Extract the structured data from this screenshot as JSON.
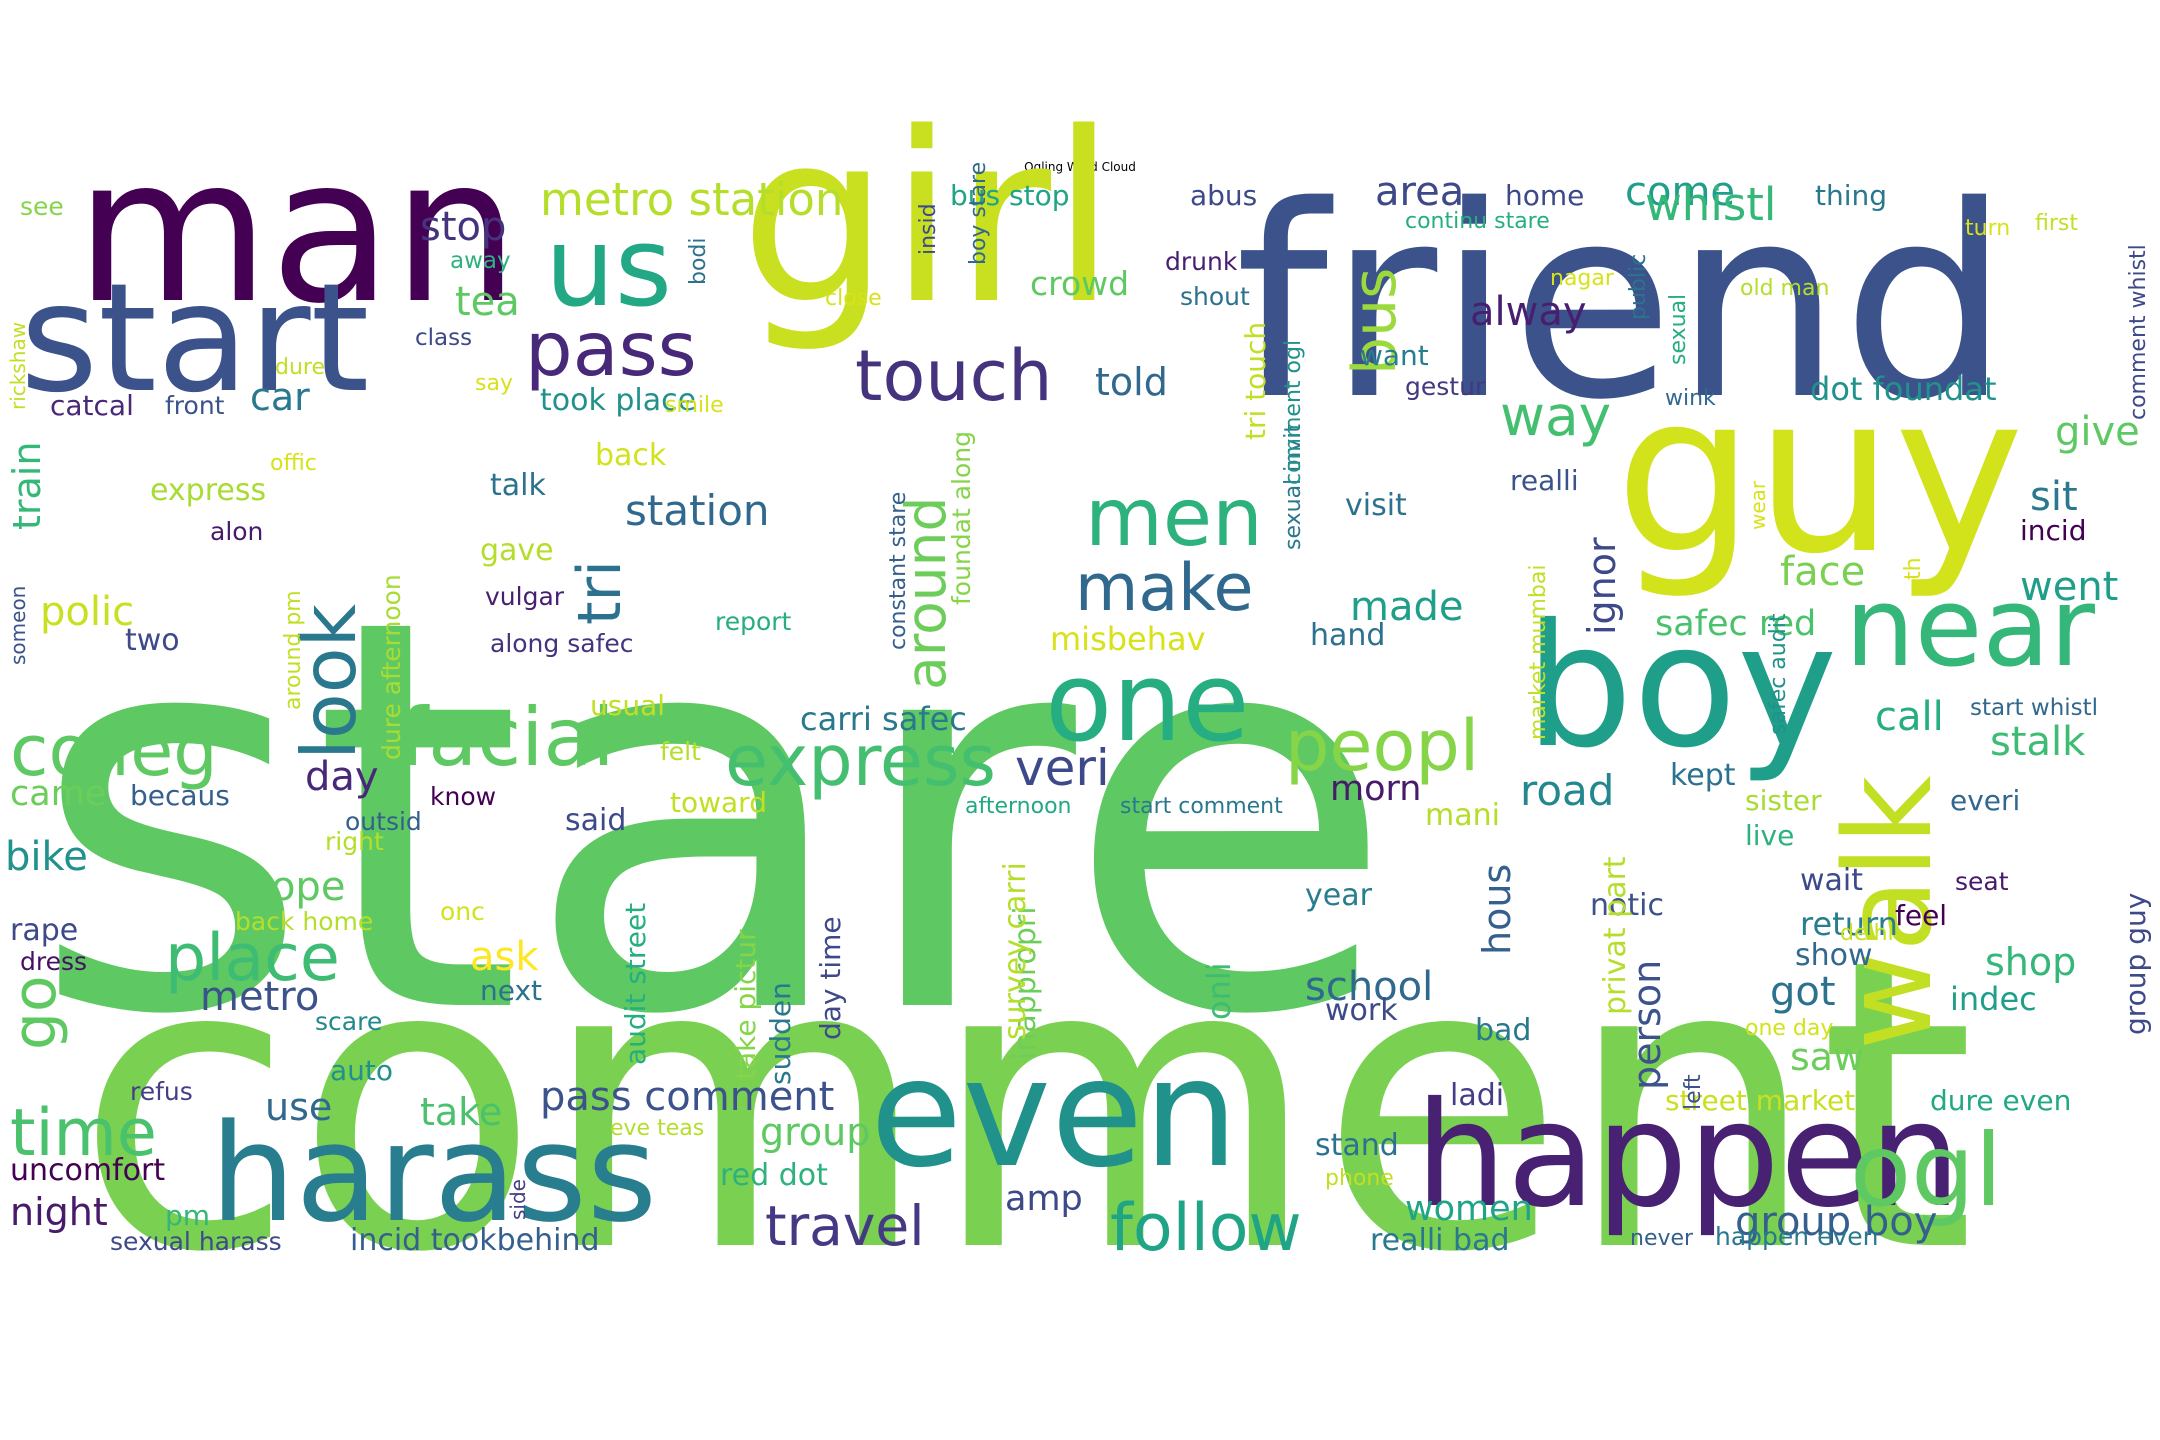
{
  "title": "Ogling Word Cloud",
  "words": [
    {
      "text": "stare",
      "color": "#5ec962"
    },
    {
      "text": "comment",
      "color": "#7ad151"
    },
    {
      "text": "friend",
      "color": "#3b528b"
    },
    {
      "text": "guy",
      "color": "#d2e21b"
    },
    {
      "text": "girl",
      "color": "#c8e020"
    },
    {
      "text": "man",
      "color": "#440154"
    },
    {
      "text": "start",
      "color": "#3b528b"
    },
    {
      "text": "boy",
      "color": "#1f9e89"
    },
    {
      "text": "near",
      "color": "#35b779"
    },
    {
      "text": "even",
      "color": "#21918c"
    },
    {
      "text": "happen",
      "color": "#482173"
    },
    {
      "text": "harass",
      "color": "#287d8e"
    },
    {
      "text": "one",
      "color": "#26ad81"
    },
    {
      "text": "us",
      "color": "#22a884"
    },
    {
      "text": "walk",
      "color": "#c2df23"
    },
    {
      "text": "ogl",
      "color": "#5ec962"
    },
    {
      "text": "look",
      "color": "#2a788e"
    },
    {
      "text": "facial",
      "color": "#5ec962"
    },
    {
      "text": "express",
      "color": "#44bf70"
    },
    {
      "text": "colleg",
      "color": "#5ec962"
    },
    {
      "text": "men",
      "color": "#2db27d"
    },
    {
      "text": "peopl",
      "color": "#86d549"
    },
    {
      "text": "make",
      "color": "#31688e"
    },
    {
      "text": "touch",
      "color": "#46337e"
    },
    {
      "text": "pass",
      "color": "#482878"
    },
    {
      "text": "bus",
      "color": "#9bd93c"
    },
    {
      "text": "around",
      "color": "#6ccd5a"
    },
    {
      "text": "tri",
      "color": "#2c728e"
    },
    {
      "text": "time",
      "color": "#4ac16d"
    },
    {
      "text": "place",
      "color": "#3fbc73"
    },
    {
      "text": "go",
      "color": "#5ec962"
    },
    {
      "text": "follow",
      "color": "#20a486"
    },
    {
      "text": "travel",
      "color": "#443983"
    },
    {
      "text": "veri",
      "color": "#3e4989"
    },
    {
      "text": "way",
      "color": "#44bf70"
    },
    {
      "text": "metro station",
      "color": "#b5de2b"
    },
    {
      "text": "area",
      "color": "#3e4989"
    },
    {
      "text": "come",
      "color": "#1f9e89"
    },
    {
      "text": "whistl",
      "color": "#35b779"
    },
    {
      "text": "stop",
      "color": "#46337e"
    },
    {
      "text": "tea",
      "color": "#5ec962"
    },
    {
      "text": "station",
      "color": "#31688e"
    },
    {
      "text": "alway",
      "color": "#481f70"
    },
    {
      "text": "face",
      "color": "#7ad151"
    },
    {
      "text": "sit",
      "color": "#2a788e"
    },
    {
      "text": "give",
      "color": "#5ec962"
    },
    {
      "text": "went",
      "color": "#1f9e89"
    },
    {
      "text": "stalk",
      "color": "#3fbc73"
    },
    {
      "text": "call",
      "color": "#26ad81"
    },
    {
      "text": "road",
      "color": "#23888e"
    },
    {
      "text": "made",
      "color": "#1f9e89"
    },
    {
      "text": "ignor",
      "color": "#3e4989"
    },
    {
      "text": "safec red",
      "color": "#4ac16d"
    },
    {
      "text": "polic",
      "color": "#c8e020"
    },
    {
      "text": "day",
      "color": "#482878"
    },
    {
      "text": "car",
      "color": "#2a788e"
    },
    {
      "text": "told",
      "color": "#31688e"
    },
    {
      "text": "school",
      "color": "#31688e"
    },
    {
      "text": "metro",
      "color": "#3b528b"
    },
    {
      "text": "ask",
      "color": "#fde725"
    },
    {
      "text": "grope",
      "color": "#5ec962"
    },
    {
      "text": "bike",
      "color": "#21918c"
    },
    {
      "text": "came",
      "color": "#6ccd5a"
    },
    {
      "text": "morn",
      "color": "#481a6c"
    },
    {
      "text": "hous",
      "color": "#355f8d"
    },
    {
      "text": "person",
      "color": "#3b528b"
    },
    {
      "text": "got",
      "color": "#2c728e"
    },
    {
      "text": "shop",
      "color": "#35b779"
    },
    {
      "text": "indec",
      "color": "#1f9e89"
    },
    {
      "text": "saw",
      "color": "#6ccd5a"
    },
    {
      "text": "use",
      "color": "#31688e"
    },
    {
      "text": "take",
      "color": "#4ac16d"
    },
    {
      "text": "pass comment",
      "color": "#3b528b"
    },
    {
      "text": "group",
      "color": "#5ec962"
    },
    {
      "text": "group boy",
      "color": "#355f8d"
    },
    {
      "text": "night",
      "color": "#481a6c"
    },
    {
      "text": "women",
      "color": "#20a486"
    },
    {
      "text": "amp",
      "color": "#3e4989"
    },
    {
      "text": "ladi",
      "color": "#433e85"
    },
    {
      "text": "stand",
      "color": "#2c728e"
    },
    {
      "text": "misbehav",
      "color": "#d8e219"
    },
    {
      "text": "took place",
      "color": "#21918c"
    },
    {
      "text": "dot foundat",
      "color": "#21918c"
    },
    {
      "text": "carri safec",
      "color": "#2a788e"
    },
    {
      "text": "incid",
      "color": "#440154"
    },
    {
      "text": "realli",
      "color": "#3b528b"
    },
    {
      "text": "visit",
      "color": "#2c728e"
    },
    {
      "text": "hand",
      "color": "#2c728e"
    },
    {
      "text": "express",
      "color": "#a8db34"
    },
    {
      "text": "back",
      "color": "#d2e21b"
    },
    {
      "text": "talk",
      "color": "#2c728e"
    },
    {
      "text": "gave",
      "color": "#b5de2b"
    },
    {
      "text": "two",
      "color": "#3e4989"
    },
    {
      "text": "catcal",
      "color": "#482878"
    },
    {
      "text": "crowd",
      "color": "#5ec962"
    },
    {
      "text": "want",
      "color": "#287d8e"
    },
    {
      "text": "home",
      "color": "#3e4989"
    },
    {
      "text": "thing",
      "color": "#2a788e"
    },
    {
      "text": "abus",
      "color": "#3e4989"
    },
    {
      "text": "bus stop",
      "color": "#20a486"
    },
    {
      "text": "see",
      "color": "#86d549"
    },
    {
      "text": "train",
      "color": "#35b779"
    },
    {
      "text": "uncomfort",
      "color": "#440154"
    },
    {
      "text": "sexual harass",
      "color": "#3e4989"
    },
    {
      "text": "incid tookbehind",
      "color": "#355f8d"
    },
    {
      "text": "realli bad",
      "color": "#2a788e"
    },
    {
      "text": "dure even",
      "color": "#22a884"
    },
    {
      "text": "street market",
      "color": "#c8e020"
    },
    {
      "text": "return",
      "color": "#287d8e"
    },
    {
      "text": "show",
      "color": "#31688e"
    },
    {
      "text": "wait",
      "color": "#3e4989"
    },
    {
      "text": "feel",
      "color": "#440154"
    },
    {
      "text": "notic",
      "color": "#3b528b"
    },
    {
      "text": "year",
      "color": "#287d8e"
    },
    {
      "text": "work",
      "color": "#3e4989"
    },
    {
      "text": "bad",
      "color": "#2a788e"
    },
    {
      "text": "kept",
      "color": "#2c728e"
    },
    {
      "text": "mani",
      "color": "#b5de2b"
    },
    {
      "text": "sister",
      "color": "#a8db34"
    },
    {
      "text": "live",
      "color": "#2db27d"
    },
    {
      "text": "everi",
      "color": "#31688e"
    },
    {
      "text": "seat",
      "color": "#481a6c"
    },
    {
      "text": "said",
      "color": "#3e4989"
    },
    {
      "text": "toward",
      "color": "#c2df23"
    },
    {
      "text": "usual",
      "color": "#c2df23"
    },
    {
      "text": "next",
      "color": "#2c728e"
    },
    {
      "text": "auto",
      "color": "#21918c"
    },
    {
      "text": "red dot",
      "color": "#2db27d"
    },
    {
      "text": "pm",
      "color": "#35b779"
    },
    {
      "text": "rape",
      "color": "#3e4989"
    },
    {
      "text": "dress",
      "color": "#471063"
    },
    {
      "text": "becaus",
      "color": "#355f8d"
    },
    {
      "text": "front",
      "color": "#3b528b"
    },
    {
      "text": "alon",
      "color": "#481a6c"
    },
    {
      "text": "vulgar",
      "color": "#481f70"
    },
    {
      "text": "along safec",
      "color": "#46337e"
    },
    {
      "text": "report",
      "color": "#26ad81"
    },
    {
      "text": "felt",
      "color": "#b5de2b"
    },
    {
      "text": "know",
      "color": "#440154"
    },
    {
      "text": "outsid",
      "color": "#355f8d"
    },
    {
      "text": "right",
      "color": "#b5de2b"
    },
    {
      "text": "onc",
      "color": "#d2e21b"
    },
    {
      "text": "back home",
      "color": "#b5de2b"
    },
    {
      "text": "scare",
      "color": "#23888e"
    },
    {
      "text": "refus",
      "color": "#433e85"
    },
    {
      "text": "eve teas",
      "color": "#b5de2b"
    },
    {
      "text": "phone",
      "color": "#c2df23"
    },
    {
      "text": "side",
      "color": "#433e85"
    },
    {
      "text": "never",
      "color": "#355f8d"
    },
    {
      "text": "happen even",
      "color": "#2a788e"
    },
    {
      "text": "one day",
      "color": "#d2e21b"
    },
    {
      "text": "delhi",
      "color": "#c8e020"
    },
    {
      "text": "start whistl",
      "color": "#31688e"
    },
    {
      "text": "wink",
      "color": "#31688e"
    },
    {
      "text": "gestur",
      "color": "#443983"
    },
    {
      "text": "old man",
      "color": "#b5de2b"
    },
    {
      "text": "nagar",
      "color": "#d8e219"
    },
    {
      "text": "drunk",
      "color": "#481f70"
    },
    {
      "text": "shout",
      "color": "#2c728e"
    },
    {
      "text": "smile",
      "color": "#d8e219"
    },
    {
      "text": "class",
      "color": "#3e4989"
    },
    {
      "text": "say",
      "color": "#d8e219"
    },
    {
      "text": "close",
      "color": "#d8e219"
    },
    {
      "text": "away",
      "color": "#2db27d"
    },
    {
      "text": "dure",
      "color": "#c2df23"
    },
    {
      "text": "offic",
      "color": "#d8e219"
    },
    {
      "text": "continu stare",
      "color": "#26ad81"
    },
    {
      "text": "turn",
      "color": "#d8e219"
    },
    {
      "text": "first",
      "color": "#c2df23"
    },
    {
      "text": "wear",
      "color": "#d8e219"
    },
    {
      "text": "afternoon",
      "color": "#22a884"
    },
    {
      "text": "start comment",
      "color": "#2a788e"
    },
    {
      "text": "bodi",
      "color": "#2c728e"
    },
    {
      "text": "insid",
      "color": "#3e4989"
    },
    {
      "text": "boy stare",
      "color": "#31688e"
    },
    {
      "text": "sexual invit",
      "color": "#2a788e"
    },
    {
      "text": "sexual",
      "color": "#26ad81"
    },
    {
      "text": "public",
      "color": "#2c728e"
    },
    {
      "text": "comment whistl",
      "color": "#3e4989"
    },
    {
      "text": "rickshaw",
      "color": "#c2df23"
    },
    {
      "text": "someon",
      "color": "#3b528b"
    },
    {
      "text": "around pm",
      "color": "#c2df23"
    },
    {
      "text": "dure afternoon",
      "color": "#a8db34"
    },
    {
      "text": "constant stare",
      "color": "#355f8d"
    },
    {
      "text": "foundat along",
      "color": "#86d549"
    },
    {
      "text": "tri touch",
      "color": "#c2df23"
    },
    {
      "text": "comment ogl",
      "color": "#21918c"
    },
    {
      "text": "audit street",
      "color": "#26ad81"
    },
    {
      "text": "take pictur",
      "color": "#86d549"
    },
    {
      "text": "sudden",
      "color": "#2a788e"
    },
    {
      "text": "day time",
      "color": "#3e4989"
    },
    {
      "text": "inappropri",
      "color": "#6ccd5a"
    },
    {
      "text": "survey carri",
      "color": "#b5de2b"
    },
    {
      "text": "onli",
      "color": "#3fbc73"
    },
    {
      "text": "privat part",
      "color": "#b5de2b"
    },
    {
      "text": "left",
      "color": "#3b528b"
    },
    {
      "text": "safec audit",
      "color": "#21918c"
    },
    {
      "text": "market mumbai",
      "color": "#c2df23"
    },
    {
      "text": "group guy",
      "color": "#3e4989"
    },
    {
      "text": "th",
      "color": "#d8e219"
    }
  ]
}
